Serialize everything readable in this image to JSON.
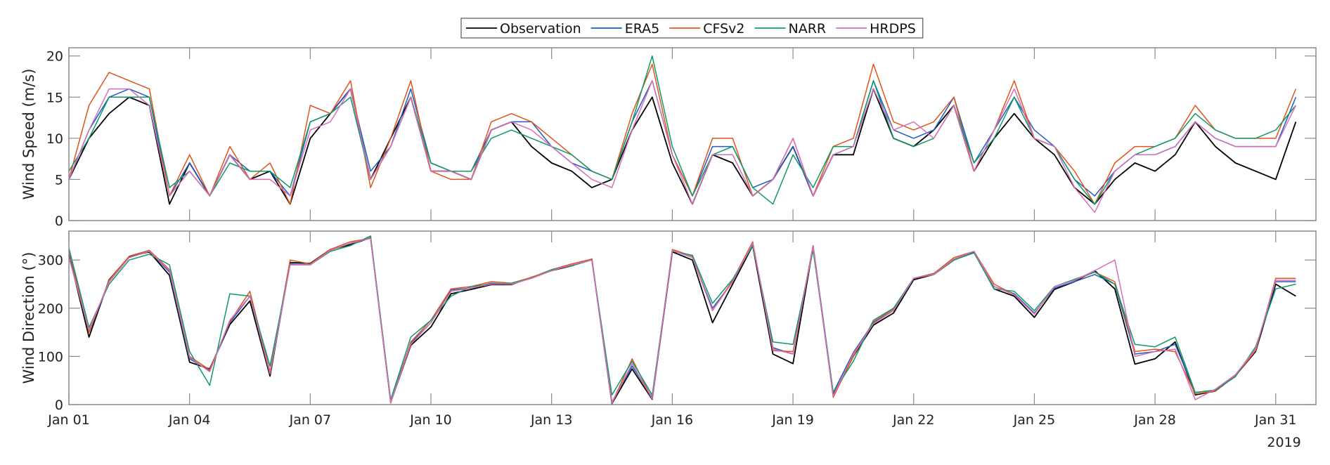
{
  "legend": {
    "placement": "top-center",
    "entries": [
      {
        "name": "Observation",
        "color": "#000000"
      },
      {
        "name": "ERA5",
        "color": "#1f5cc4"
      },
      {
        "name": "CFSv2",
        "color": "#e0541a"
      },
      {
        "name": "NARR",
        "color": "#0f9968"
      },
      {
        "name": "HRDPS",
        "color": "#d56fba"
      }
    ]
  },
  "x_axis": {
    "tick_labels": [
      "Jan 01",
      "Jan 04",
      "Jan 07",
      "Jan 10",
      "Jan 13",
      "Jan 16",
      "Jan 19",
      "Jan 22",
      "Jan 25",
      "Jan 28",
      "Jan 31"
    ],
    "tick_dates": [
      "2019-01-01",
      "2019-01-04",
      "2019-01-07",
      "2019-01-10",
      "2019-01-13",
      "2019-01-16",
      "2019-01-19",
      "2019-01-22",
      "2019-01-25",
      "2019-01-28",
      "2019-01-31"
    ],
    "year_label": "2019",
    "xlim": [
      "2019-01-01",
      "2019-02-01"
    ]
  },
  "chart_data": [
    {
      "type": "line",
      "ylabel": "Wind Speed (m/s)",
      "ylim": [
        0,
        21
      ],
      "yticks": [
        0,
        5,
        10,
        15,
        20
      ],
      "grid": false,
      "x": [
        "2019-01-01T00",
        "2019-01-01T12",
        "2019-01-02T00",
        "2019-01-02T12",
        "2019-01-03T00",
        "2019-01-03T12",
        "2019-01-04T00",
        "2019-01-04T12",
        "2019-01-05T00",
        "2019-01-05T12",
        "2019-01-06T00",
        "2019-01-06T12",
        "2019-01-07T00",
        "2019-01-07T12",
        "2019-01-08T00",
        "2019-01-08T12",
        "2019-01-09T00",
        "2019-01-09T12",
        "2019-01-10T00",
        "2019-01-10T12",
        "2019-01-11T00",
        "2019-01-11T12",
        "2019-01-12T00",
        "2019-01-12T12",
        "2019-01-13T00",
        "2019-01-13T12",
        "2019-01-14T00",
        "2019-01-14T12",
        "2019-01-15T00",
        "2019-01-15T12",
        "2019-01-16T00",
        "2019-01-16T12",
        "2019-01-17T00",
        "2019-01-17T12",
        "2019-01-18T00",
        "2019-01-18T12",
        "2019-01-19T00",
        "2019-01-19T12",
        "2019-01-20T00",
        "2019-01-20T12",
        "2019-01-21T00",
        "2019-01-21T12",
        "2019-01-22T00",
        "2019-01-22T12",
        "2019-01-23T00",
        "2019-01-23T12",
        "2019-01-24T00",
        "2019-01-24T12",
        "2019-01-25T00",
        "2019-01-25T12",
        "2019-01-26T00",
        "2019-01-26T12",
        "2019-01-27T00",
        "2019-01-27T12",
        "2019-01-28T00",
        "2019-01-28T12",
        "2019-01-29T00",
        "2019-01-29T12",
        "2019-01-30T00",
        "2019-01-30T12",
        "2019-01-31T00",
        "2019-01-31T12"
      ],
      "series": [
        {
          "name": "Observation",
          "values": [
            5,
            10,
            13,
            15,
            14,
            2,
            7,
            3,
            8,
            5,
            6,
            2,
            10,
            13,
            16,
            5,
            10,
            15,
            6,
            6,
            5,
            11,
            12,
            9,
            7,
            6,
            4,
            5,
            11,
            15,
            7,
            2,
            8,
            7,
            3,
            5,
            9,
            3,
            8,
            8,
            16,
            10,
            9,
            11,
            14,
            6,
            10,
            13,
            10,
            8,
            4,
            2,
            5,
            7,
            6,
            8,
            12,
            9,
            7,
            6,
            5,
            12
          ]
        },
        {
          "name": "ERA5",
          "values": [
            5,
            11,
            15,
            16,
            15,
            3,
            7,
            3,
            8,
            6,
            6,
            3,
            12,
            13,
            16,
            6,
            9,
            16,
            7,
            6,
            6,
            11,
            12,
            12,
            9,
            7,
            6,
            5,
            12,
            17,
            8,
            3,
            9,
            9,
            4,
            5,
            9,
            3,
            8,
            9,
            17,
            11,
            10,
            11,
            15,
            7,
            11,
            15,
            11,
            9,
            5,
            3,
            6,
            8,
            8,
            9,
            12,
            10,
            9,
            9,
            9,
            15
          ]
        },
        {
          "name": "CFSv2",
          "values": [
            5,
            14,
            18,
            17,
            16,
            3,
            8,
            3,
            9,
            5,
            7,
            2,
            14,
            13,
            17,
            4,
            10,
            17,
            6,
            5,
            5,
            12,
            13,
            12,
            10,
            8,
            6,
            5,
            13,
            19,
            8,
            3,
            10,
            10,
            3,
            5,
            10,
            3,
            9,
            10,
            19,
            12,
            11,
            12,
            15,
            6,
            11,
            17,
            10,
            9,
            6,
            2,
            7,
            9,
            9,
            10,
            14,
            11,
            10,
            10,
            10,
            16
          ]
        },
        {
          "name": "NARR",
          "values": [
            6,
            10,
            15,
            15,
            15,
            4,
            6,
            3,
            7,
            6,
            6,
            4,
            12,
            13,
            15,
            5,
            9,
            15,
            7,
            6,
            6,
            10,
            11,
            10,
            9,
            8,
            6,
            5,
            12,
            20,
            9,
            3,
            8,
            9,
            4,
            2,
            8,
            4,
            9,
            9,
            17,
            10,
            9,
            10,
            14,
            7,
            10,
            15,
            10,
            9,
            5,
            2,
            6,
            8,
            9,
            10,
            13,
            11,
            10,
            10,
            11,
            14
          ]
        },
        {
          "name": "HRDPS",
          "values": [
            5,
            11,
            16,
            16,
            14,
            3,
            6,
            3,
            8,
            5,
            5,
            3,
            11,
            12,
            16,
            5,
            9,
            15,
            6,
            6,
            5,
            11,
            12,
            11,
            9,
            7,
            5,
            4,
            11,
            17,
            8,
            2,
            8,
            8,
            3,
            5,
            10,
            3,
            8,
            9,
            16,
            11,
            12,
            10,
            14,
            6,
            11,
            16,
            10,
            9,
            4,
            1,
            6,
            8,
            8,
            9,
            12,
            10,
            9,
            9,
            9,
            14
          ]
        }
      ]
    },
    {
      "type": "line",
      "ylabel": "Wind Direction (°)",
      "ylim": [
        0,
        360
      ],
      "yticks": [
        0,
        100,
        200,
        300
      ],
      "grid": false,
      "x": [
        "2019-01-01T00",
        "2019-01-01T12",
        "2019-01-02T00",
        "2019-01-02T12",
        "2019-01-03T00",
        "2019-01-03T12",
        "2019-01-04T00",
        "2019-01-04T12",
        "2019-01-05T00",
        "2019-01-05T12",
        "2019-01-06T00",
        "2019-01-06T12",
        "2019-01-07T00",
        "2019-01-07T12",
        "2019-01-08T00",
        "2019-01-08T12",
        "2019-01-09T00",
        "2019-01-09T12",
        "2019-01-10T00",
        "2019-01-10T12",
        "2019-01-11T00",
        "2019-01-11T12",
        "2019-01-12T00",
        "2019-01-12T12",
        "2019-01-13T00",
        "2019-01-13T12",
        "2019-01-14T00",
        "2019-01-14T12",
        "2019-01-15T00",
        "2019-01-15T12",
        "2019-01-16T00",
        "2019-01-16T12",
        "2019-01-17T00",
        "2019-01-17T12",
        "2019-01-18T00",
        "2019-01-18T12",
        "2019-01-19T00",
        "2019-01-19T12",
        "2019-01-20T00",
        "2019-01-20T12",
        "2019-01-21T00",
        "2019-01-21T12",
        "2019-01-22T00",
        "2019-01-22T12",
        "2019-01-23T00",
        "2019-01-23T12",
        "2019-01-24T00",
        "2019-01-24T12",
        "2019-01-25T00",
        "2019-01-25T12",
        "2019-01-26T00",
        "2019-01-26T12",
        "2019-01-27T00",
        "2019-01-27T12",
        "2019-01-28T00",
        "2019-01-28T12",
        "2019-01-29T00",
        "2019-01-29T12",
        "2019-01-30T00",
        "2019-01-30T12",
        "2019-01-31T00",
        "2019-01-31T12"
      ],
      "series": [
        {
          "name": "Observation",
          "values": [
            312,
            140,
            259,
            307,
            317,
            268,
            88,
            74,
            166,
            215,
            59,
            295,
            293,
            322,
            332,
            346,
            5,
            123,
            161,
            230,
            239,
            249,
            249,
            264,
            278,
            288,
            302,
            2,
            74,
            11,
            317,
            300,
            170,
            250,
            330,
            105,
            85,
            327,
            20,
            100,
            165,
            190,
            259,
            270,
            300,
            317,
            240,
            225,
            181,
            239,
            255,
            278,
            240,
            84,
            95,
            130,
            20,
            28,
            60,
            110,
            250,
            225
          ]
        },
        {
          "name": "ERA5",
          "values": [
            315,
            150,
            255,
            305,
            318,
            275,
            95,
            70,
            170,
            225,
            65,
            292,
            290,
            320,
            335,
            345,
            8,
            128,
            170,
            238,
            242,
            252,
            250,
            262,
            278,
            290,
            300,
            5,
            80,
            15,
            320,
            305,
            200,
            255,
            335,
            118,
            105,
            330,
            25,
            108,
            170,
            195,
            262,
            272,
            302,
            315,
            245,
            230,
            190,
            242,
            255,
            270,
            250,
            105,
            110,
            125,
            25,
            30,
            62,
            115,
            255,
            255
          ]
        },
        {
          "name": "CFSv2",
          "values": [
            320,
            150,
            258,
            308,
            320,
            280,
            100,
            72,
            172,
            235,
            68,
            300,
            292,
            322,
            338,
            345,
            3,
            130,
            175,
            240,
            245,
            255,
            252,
            264,
            280,
            292,
            302,
            3,
            95,
            12,
            322,
            308,
            195,
            258,
            338,
            112,
            110,
            330,
            15,
            100,
            172,
            198,
            262,
            272,
            305,
            318,
            250,
            228,
            188,
            245,
            258,
            275,
            255,
            110,
            115,
            110,
            22,
            28,
            60,
            112,
            262,
            262
          ]
        },
        {
          "name": "NARR",
          "values": [
            325,
            160,
            250,
            300,
            312,
            290,
            110,
            40,
            230,
            225,
            80,
            290,
            290,
            318,
            330,
            350,
            10,
            140,
            175,
            225,
            245,
            250,
            252,
            262,
            280,
            288,
            300,
            20,
            90,
            20,
            318,
            310,
            210,
            260,
            330,
            130,
            125,
            320,
            25,
            90,
            175,
            200,
            262,
            270,
            300,
            315,
            240,
            235,
            195,
            245,
            260,
            275,
            250,
            125,
            120,
            140,
            25,
            30,
            58,
            120,
            240,
            250
          ]
        },
        {
          "name": "HRDPS",
          "values": [
            305,
            155,
            255,
            305,
            318,
            278,
            98,
            68,
            175,
            225,
            64,
            290,
            290,
            320,
            335,
            345,
            5,
            125,
            170,
            235,
            242,
            250,
            250,
            262,
            278,
            290,
            300,
            3,
            85,
            12,
            320,
            305,
            195,
            255,
            335,
            115,
            105,
            328,
            18,
            105,
            168,
            195,
            262,
            270,
            302,
            318,
            245,
            228,
            188,
            245,
            258,
            278,
            300,
            100,
            110,
            115,
            10,
            32,
            62,
            115,
            258,
            258
          ]
        }
      ]
    }
  ]
}
